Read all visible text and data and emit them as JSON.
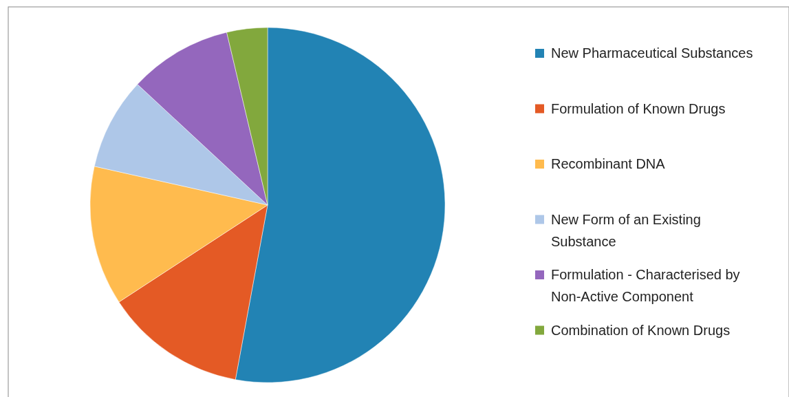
{
  "chart_data": {
    "type": "pie",
    "categories": [
      "New Pharmaceutical Substances",
      "Formulation of Known Drugs",
      "Recombinant DNA",
      "New Form of an Existing Substance",
      "Formulation - Characterised by Non-Active Component",
      "Combination of Known Drugs"
    ],
    "values": [
      52.9,
      12.9,
      12.7,
      8.4,
      9.4,
      3.7
    ],
    "colors": [
      "#2283b4",
      "#e45a25",
      "#ffbb4e",
      "#aec7e8",
      "#9467bd",
      "#82a83d"
    ],
    "legend": "right"
  }
}
